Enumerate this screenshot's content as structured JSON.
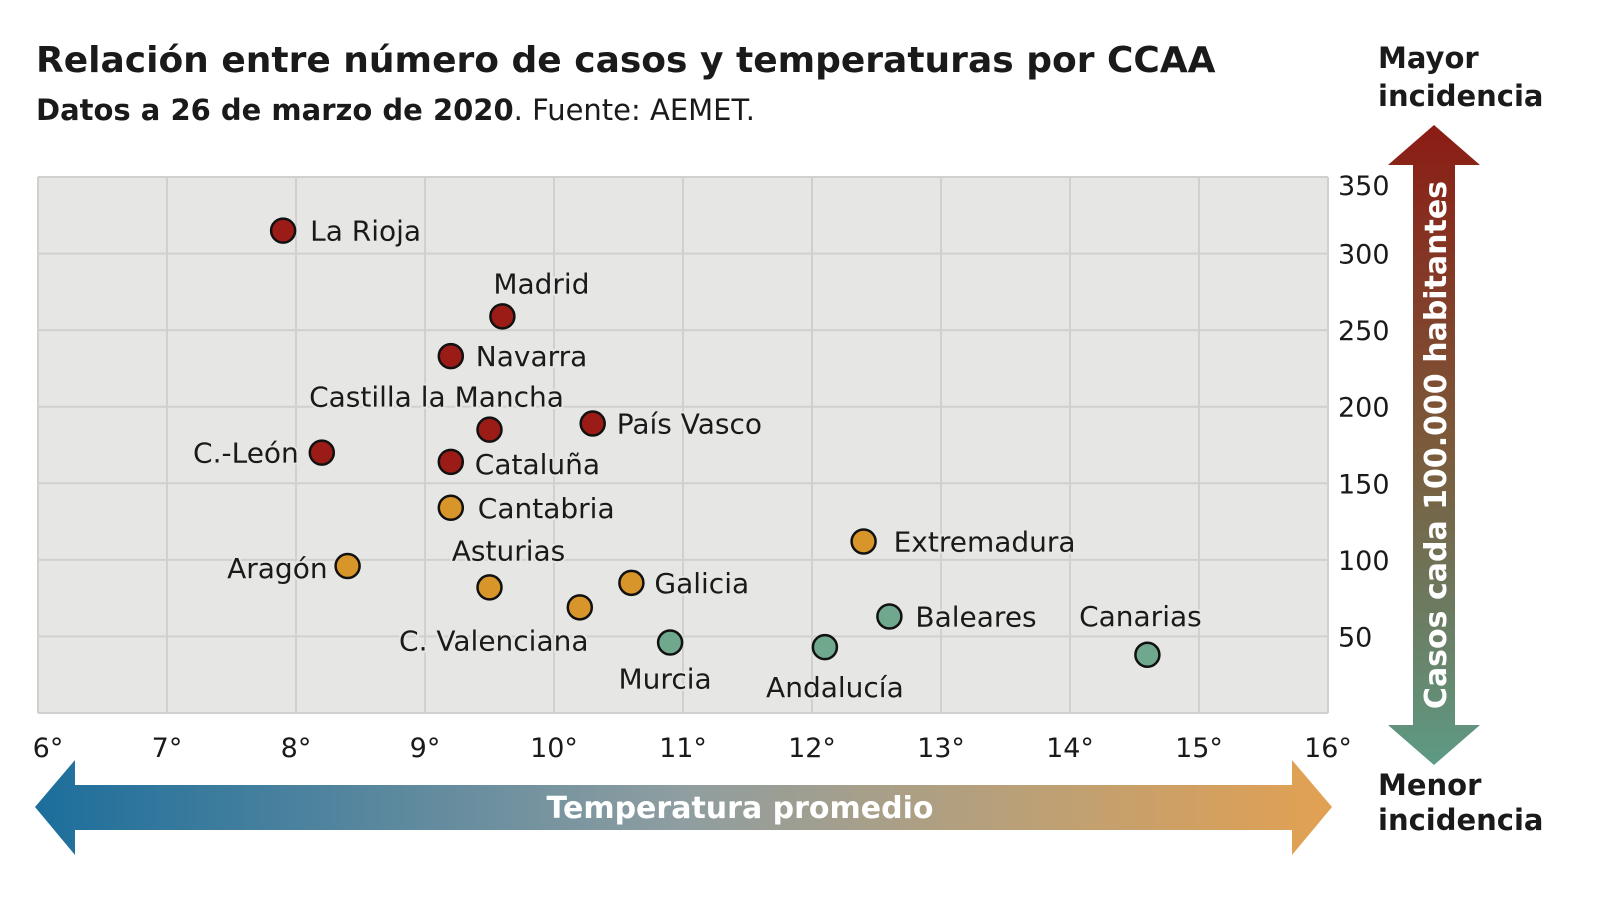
{
  "chart_data": {
    "type": "scatter",
    "title": "Relación entre número de casos y temperaturas por CCAA",
    "subtitle_bold": "Datos a 26 de marzo de 2020",
    "subtitle": ". Fuente: AEMET.",
    "xlabel": "Temperatura promedio",
    "ylabel": "Casos cada 100.000 habitantes",
    "y_top_label": [
      "Mayor",
      "incidencia"
    ],
    "y_bottom_label": [
      "Menor",
      "incidencia"
    ],
    "xlim": [
      6,
      16
    ],
    "ylim": [
      0,
      350
    ],
    "x_ticks": [
      "6°",
      "7°",
      "8°",
      "9°",
      "10°",
      "11°",
      "12°",
      "13°",
      "14°",
      "15°",
      "16°"
    ],
    "y_ticks": [
      "50",
      "100",
      "150",
      "200",
      "250",
      "300",
      "350"
    ],
    "grid": true,
    "colors": {
      "high": "#9b1b17",
      "medium": "#d8952a",
      "low": "#6fa88c",
      "background": "#e6e7e4",
      "grid": "#d0d1ce"
    },
    "points": [
      {
        "name": "La Rioja",
        "x": 7.9,
        "y": 315,
        "group": "high"
      },
      {
        "name": "Madrid",
        "x": 9.6,
        "y": 259,
        "group": "high"
      },
      {
        "name": "Navarra",
        "x": 9.2,
        "y": 233,
        "group": "high"
      },
      {
        "name": "Castilla la Mancha",
        "x": 9.5,
        "y": 185,
        "group": "high"
      },
      {
        "name": "País Vasco",
        "x": 10.3,
        "y": 189,
        "group": "high"
      },
      {
        "name": "C.-León",
        "x": 8.2,
        "y": 170,
        "group": "high"
      },
      {
        "name": "Cataluña",
        "x": 9.2,
        "y": 164,
        "group": "high"
      },
      {
        "name": "Cantabria",
        "x": 9.2,
        "y": 134,
        "group": "medium"
      },
      {
        "name": "Aragón",
        "x": 8.4,
        "y": 96,
        "group": "medium"
      },
      {
        "name": "Asturias",
        "x": 9.5,
        "y": 82,
        "group": "medium"
      },
      {
        "name": "C. Valenciana",
        "x": 10.2,
        "y": 69,
        "group": "medium"
      },
      {
        "name": "Galicia",
        "x": 10.6,
        "y": 85,
        "group": "medium"
      },
      {
        "name": "Extremadura",
        "x": 12.4,
        "y": 112,
        "group": "medium"
      },
      {
        "name": "Baleares",
        "x": 12.6,
        "y": 63,
        "group": "low"
      },
      {
        "name": "Murcia",
        "x": 10.9,
        "y": 46,
        "group": "low"
      },
      {
        "name": "Andalucía",
        "x": 12.1,
        "y": 43,
        "group": "low"
      },
      {
        "name": "Canarias",
        "x": 14.6,
        "y": 38,
        "group": "low"
      }
    ]
  }
}
